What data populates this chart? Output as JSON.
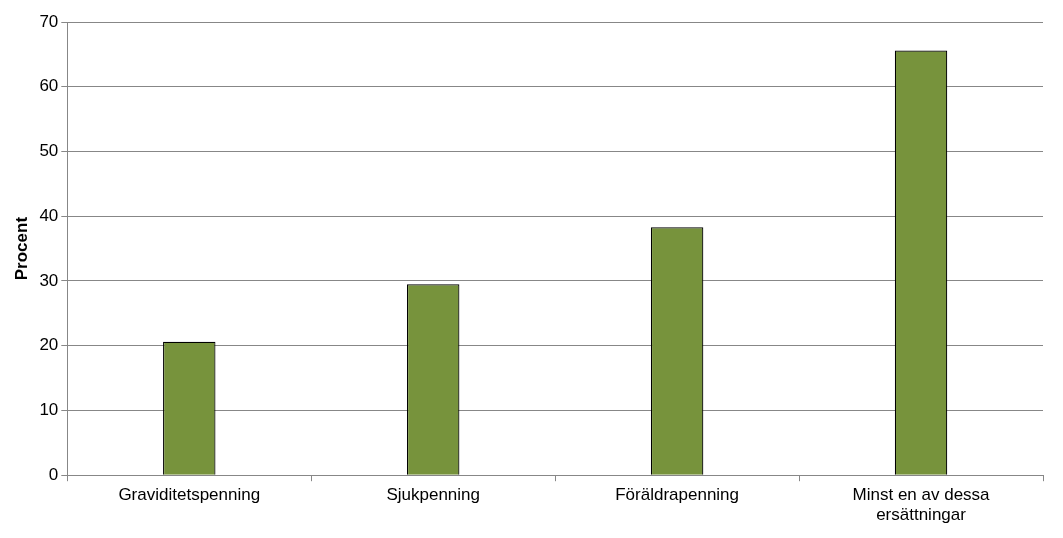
{
  "chart_data": {
    "type": "bar",
    "ylabel": "Procent",
    "categories": [
      "Graviditetspenning",
      "Sjukpenning",
      "Föräldrapenning",
      "Minst en av dessa ersättningar"
    ],
    "values": [
      20.6,
      29.5,
      38.3,
      65.6
    ],
    "color": "#77933c",
    "ylim": [
      0,
      70
    ],
    "yticks": [
      0,
      10,
      20,
      30,
      40,
      50,
      60,
      70
    ],
    "grid": "y",
    "legend": false
  }
}
